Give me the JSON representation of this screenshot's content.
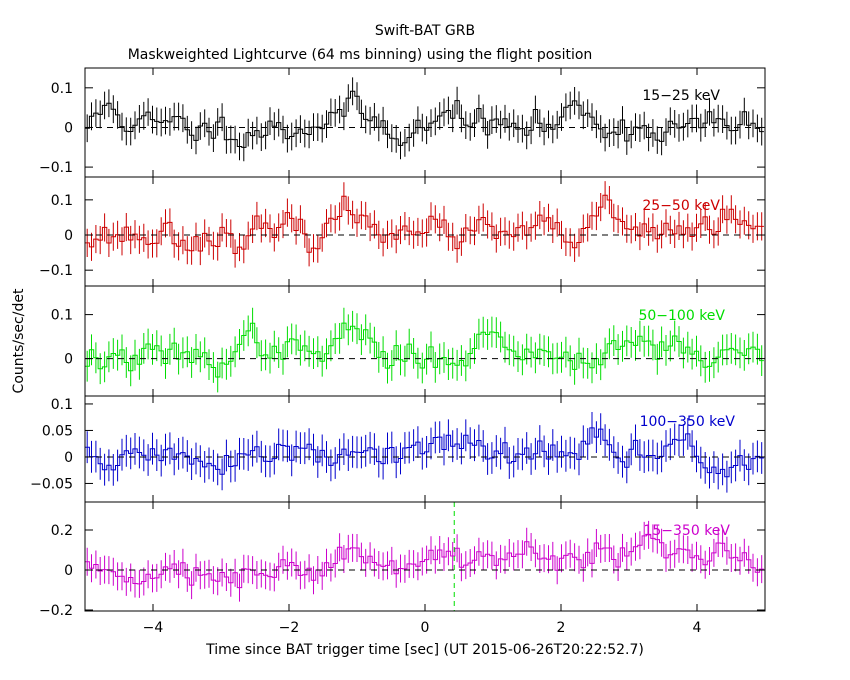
{
  "title": "Swift-BAT GRB",
  "subtitle": "Maskweighted Lightcurve (64 ms binning) using the flight position",
  "xlabel": "Time since BAT trigger time [sec] (UT 2015-06-26T20:22:52.7)",
  "ylabel": "Counts/sec/det",
  "chart_data": {
    "type": "line",
    "style": "step-histogram with error bars",
    "bin_width_sec": 0.064,
    "xlim": [
      -5.0,
      5.0
    ],
    "x_ticks": [
      "−4",
      "−2",
      "0",
      "2",
      "4"
    ],
    "x_tick_values": [
      -4,
      -2,
      0,
      2,
      4
    ],
    "marker_line_x": 0.43,
    "panels": [
      {
        "name": "15-25 keV",
        "label": "15−25 keV",
        "color": "#000000",
        "ylim": [
          -0.125,
          0.15
        ],
        "y_ticks": [
          "−0.1",
          "0",
          "0.1"
        ],
        "y_tick_values": [
          -0.1,
          0,
          0.1
        ],
        "noise_sigma": 0.04,
        "error": 0.035,
        "seed": 11,
        "peaks": [
          [
            -4.6,
            0.06,
            0.15
          ],
          [
            -1.2,
            0.04,
            0.3
          ],
          [
            0.5,
            0.05,
            0.15
          ],
          [
            2.3,
            0.05,
            0.2
          ]
        ]
      },
      {
        "name": "25-50 keV",
        "label": "25−50 keV",
        "color": "#cc0000",
        "ylim": [
          -0.145,
          0.165
        ],
        "y_ticks": [
          "−0.1",
          "0",
          "0.1"
        ],
        "y_tick_values": [
          -0.1,
          0,
          0.1
        ],
        "noise_sigma": 0.045,
        "error": 0.04,
        "seed": 23,
        "peaks": [
          [
            -1.1,
            0.07,
            0.2
          ],
          [
            -0.3,
            0.06,
            0.15
          ],
          [
            2.7,
            0.06,
            0.15
          ],
          [
            4.3,
            0.04,
            0.3
          ]
        ]
      },
      {
        "name": "50-100 keV",
        "label": "50−100 keV",
        "color": "#00dd00",
        "ylim": [
          -0.085,
          0.165
        ],
        "y_ticks": [
          "0",
          "0.1"
        ],
        "y_tick_values": [
          0,
          0.1
        ],
        "noise_sigma": 0.035,
        "error": 0.035,
        "seed": 37,
        "peaks": [
          [
            -1.1,
            0.07,
            0.2
          ],
          [
            -2.4,
            0.04,
            0.3
          ],
          [
            1.0,
            0.04,
            0.4
          ],
          [
            3.2,
            0.04,
            0.6
          ]
        ]
      },
      {
        "name": "100-350 keV",
        "label": "100−350 keV",
        "color": "#0000cc",
        "ylim": [
          -0.085,
          0.115
        ],
        "y_ticks": [
          "−0.05",
          "0",
          "0.05",
          "0.1"
        ],
        "y_tick_values": [
          -0.05,
          0,
          0.05,
          0.1
        ],
        "noise_sigma": 0.03,
        "error": 0.03,
        "seed": 51,
        "peaks": [
          [
            2.5,
            0.04,
            0.15
          ],
          [
            3.9,
            0.04,
            0.15
          ],
          [
            0.6,
            0.02,
            0.4
          ]
        ]
      },
      {
        "name": "15-350 keV",
        "label": "15−350 keV",
        "color": "#cc00cc",
        "ylim": [
          -0.205,
          0.34
        ],
        "y_ticks": [
          "−0.2",
          "0",
          "0.2"
        ],
        "y_tick_values": [
          -0.2,
          0,
          0.2
        ],
        "noise_sigma": 0.07,
        "error": 0.07,
        "seed": 73,
        "peaks": [
          [
            -1.1,
            0.12,
            0.2
          ],
          [
            0.5,
            0.1,
            0.4
          ],
          [
            1.7,
            0.06,
            0.5
          ],
          [
            3.1,
            0.12,
            0.5
          ],
          [
            4.4,
            0.08,
            0.3
          ]
        ]
      }
    ]
  }
}
